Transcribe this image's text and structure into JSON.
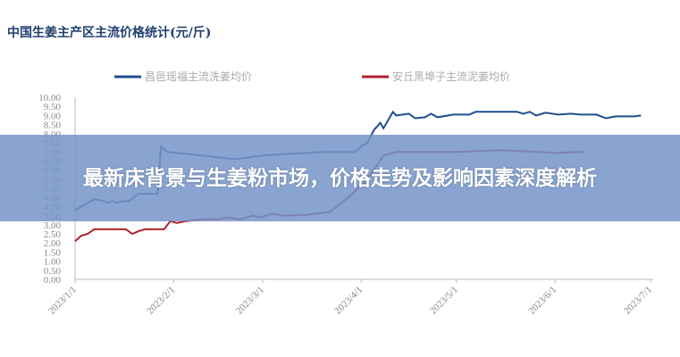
{
  "chart_data": {
    "type": "line",
    "title": "中国生姜主产区主流价格统计(元/斤)",
    "legend_position": "top",
    "ylim": [
      0,
      10
    ],
    "yticks": [
      "0.00",
      "0.50",
      "1.00",
      "1.50",
      "2.00",
      "2.50",
      "3.00",
      "3.50",
      "4.00",
      "4.50",
      "5.00",
      "5.50",
      "6.00",
      "6.50",
      "7.00",
      "7.50",
      "8.00",
      "8.50",
      "9.00",
      "9.50",
      "10.00"
    ],
    "xticks": [
      "2023/1/1",
      "2023/2/1",
      "2023/3/1",
      "2023/4/1",
      "2023/5/1",
      "2023/6/1",
      "2023/7/1"
    ],
    "grid": false,
    "series": [
      {
        "name": "昌邑瑶福主流洗姜均价",
        "color": "#1f4e8c",
        "points": [
          [
            "2023-01-01",
            3.8
          ],
          [
            "2023-01-04",
            4.1
          ],
          [
            "2023-01-07",
            4.4
          ],
          [
            "2023-01-10",
            4.3
          ],
          [
            "2023-01-11",
            4.2
          ],
          [
            "2023-01-13",
            4.3
          ],
          [
            "2023-01-14",
            4.2
          ],
          [
            "2023-01-16",
            4.3
          ],
          [
            "2023-01-18",
            4.3
          ],
          [
            "2023-01-21",
            4.7
          ],
          [
            "2023-01-27",
            4.7
          ],
          [
            "2023-01-28",
            7.3
          ],
          [
            "2023-01-30",
            7.0
          ],
          [
            "2023-02-10",
            6.8
          ],
          [
            "2023-02-20",
            6.6
          ],
          [
            "2023-03-01",
            6.8
          ],
          [
            "2023-03-10",
            6.9
          ],
          [
            "2023-03-20",
            7.0
          ],
          [
            "2023-03-30",
            7.0
          ],
          [
            "2023-04-01",
            7.3
          ],
          [
            "2023-04-03",
            7.5
          ],
          [
            "2023-04-05",
            8.2
          ],
          [
            "2023-04-07",
            8.6
          ],
          [
            "2023-04-08",
            8.3
          ],
          [
            "2023-04-11",
            9.2
          ],
          [
            "2023-04-12",
            9.0
          ],
          [
            "2023-04-16",
            9.1
          ],
          [
            "2023-04-18",
            8.85
          ],
          [
            "2023-04-21",
            8.9
          ],
          [
            "2023-04-23",
            9.1
          ],
          [
            "2023-04-25",
            8.9
          ],
          [
            "2023-04-30",
            9.05
          ],
          [
            "2023-05-05",
            9.05
          ],
          [
            "2023-05-07",
            9.2
          ],
          [
            "2023-05-20",
            9.2
          ],
          [
            "2023-05-22",
            9.1
          ],
          [
            "2023-05-24",
            9.2
          ],
          [
            "2023-05-26",
            9.0
          ],
          [
            "2023-05-29",
            9.15
          ],
          [
            "2023-06-02",
            9.05
          ],
          [
            "2023-06-06",
            9.1
          ],
          [
            "2023-06-09",
            9.05
          ],
          [
            "2023-06-14",
            9.05
          ],
          [
            "2023-06-17",
            8.85
          ],
          [
            "2023-06-20",
            8.95
          ],
          [
            "2023-06-26",
            8.95
          ],
          [
            "2023-06-28",
            9.0
          ]
        ]
      },
      {
        "name": "安丘黑埠子主流泥姜均价",
        "color": "#b0202e",
        "points": [
          [
            "2023-01-01",
            2.1
          ],
          [
            "2023-01-03",
            2.4
          ],
          [
            "2023-01-05",
            2.5
          ],
          [
            "2023-01-07",
            2.75
          ],
          [
            "2023-01-17",
            2.75
          ],
          [
            "2023-01-19",
            2.5
          ],
          [
            "2023-01-21",
            2.65
          ],
          [
            "2023-01-23",
            2.75
          ],
          [
            "2023-01-29",
            2.75
          ],
          [
            "2023-01-31",
            3.2
          ],
          [
            "2023-02-02",
            3.1
          ],
          [
            "2023-02-05",
            3.2
          ],
          [
            "2023-02-10",
            3.3
          ],
          [
            "2023-02-15",
            3.3
          ],
          [
            "2023-02-18",
            3.4
          ],
          [
            "2023-02-22",
            3.3
          ],
          [
            "2023-02-26",
            3.5
          ],
          [
            "2023-02-28",
            3.4
          ],
          [
            "2023-03-04",
            3.6
          ],
          [
            "2023-03-08",
            3.5
          ],
          [
            "2023-03-15",
            3.55
          ],
          [
            "2023-03-22",
            3.7
          ],
          [
            "2023-03-28",
            4.5
          ],
          [
            "2023-04-03",
            5.5
          ],
          [
            "2023-04-08",
            6.8
          ],
          [
            "2023-04-12",
            7.0
          ],
          [
            "2023-05-01",
            7.0
          ],
          [
            "2023-05-15",
            7.1
          ],
          [
            "2023-06-01",
            6.95
          ],
          [
            "2023-06-10",
            7.0
          ]
        ]
      }
    ]
  },
  "banner": {
    "text": "最新床背景与生姜粉市场，价格走势及影响因素深度解析"
  }
}
